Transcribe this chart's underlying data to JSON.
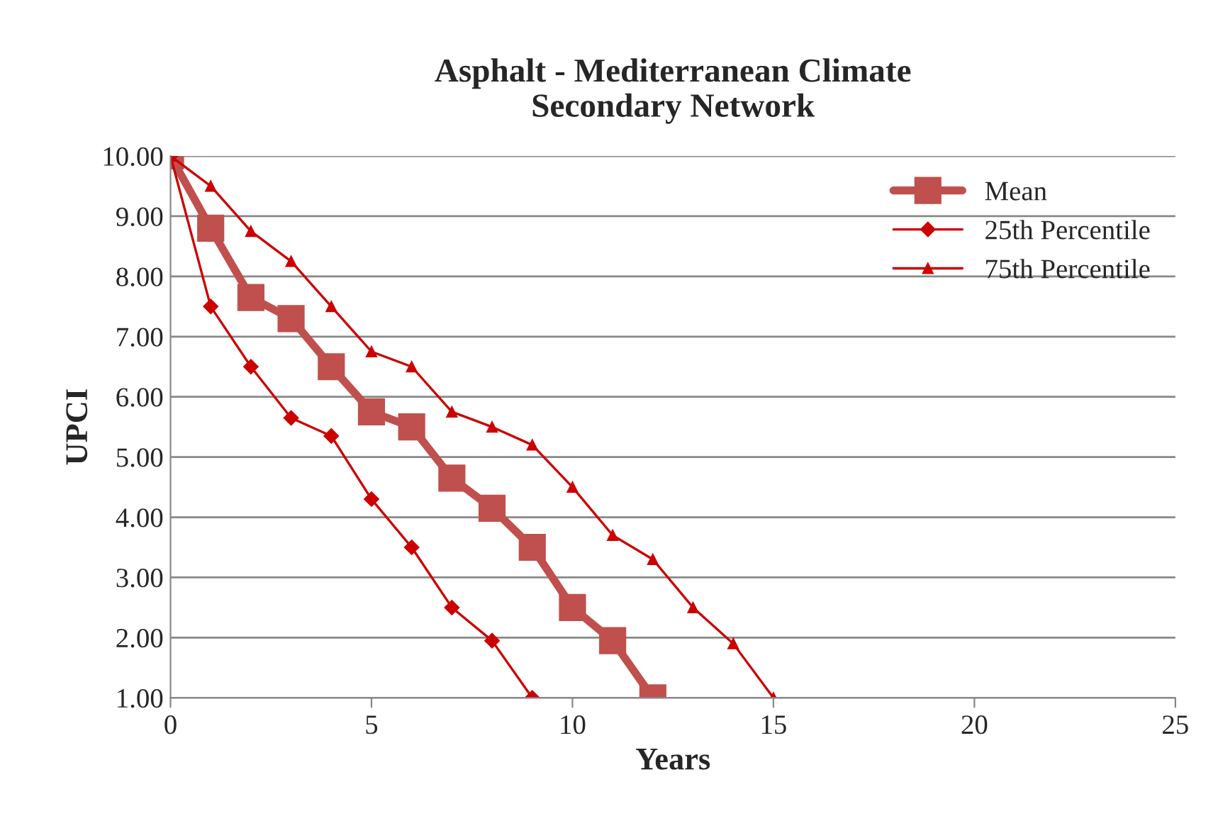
{
  "chart_data": {
    "type": "line",
    "title": "Asphalt - Mediterranean Climate\nSecondary Network",
    "xlabel": "Years",
    "ylabel": "UPCI",
    "series": [
      {
        "name": "Mean",
        "color": "#c0504d",
        "marker": "square",
        "x": [
          0,
          1,
          2,
          3,
          4,
          5,
          6,
          7,
          8,
          9,
          10,
          11,
          12
        ],
        "values": [
          10,
          8.8,
          7.65,
          7.3,
          6.5,
          5.75,
          5.5,
          4.65,
          4.15,
          3.5,
          2.5,
          1.95,
          1.0
        ]
      },
      {
        "name": "25th Percentile",
        "color": "#cc0000",
        "marker": "diamond",
        "x": [
          0,
          1,
          2,
          3,
          4,
          5,
          6,
          7,
          8,
          9
        ],
        "values": [
          10,
          7.5,
          6.5,
          5.65,
          5.35,
          4.3,
          3.5,
          2.5,
          1.95,
          1.0
        ]
      },
      {
        "name": "75th Percentile",
        "color": "#cc0000",
        "marker": "triangle",
        "x": [
          0,
          1,
          2,
          3,
          4,
          5,
          6,
          7,
          8,
          9,
          10,
          11,
          12,
          13,
          14,
          15
        ],
        "values": [
          10,
          9.5,
          8.75,
          8.25,
          7.5,
          6.75,
          6.5,
          5.75,
          5.5,
          5.2,
          4.5,
          3.7,
          3.3,
          2.5,
          1.9,
          1.0
        ]
      }
    ],
    "xlim": [
      0,
      25
    ],
    "xticks": [
      0,
      5,
      10,
      15,
      20,
      25
    ],
    "ylim": [
      1,
      10
    ],
    "yticks": [
      {
        "value": 1,
        "label": "1.00"
      },
      {
        "value": 2,
        "label": "2.00"
      },
      {
        "value": 3,
        "label": "3.00"
      },
      {
        "value": 4,
        "label": "4.00"
      },
      {
        "value": 5,
        "label": "5.00"
      },
      {
        "value": 6,
        "label": "6.00"
      },
      {
        "value": 7,
        "label": "7.00"
      },
      {
        "value": 8,
        "label": "8.00"
      },
      {
        "value": 9,
        "label": "9.00"
      },
      {
        "value": 10,
        "label": "10.00"
      }
    ],
    "grid": "y",
    "legend": "top right"
  }
}
